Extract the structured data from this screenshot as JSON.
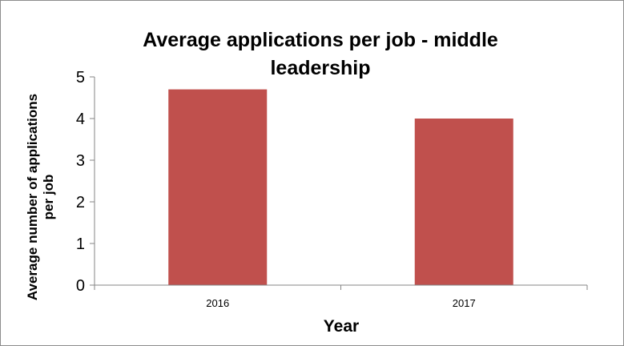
{
  "chart_data": {
    "type": "bar",
    "title_lines": [
      "Average applications per job - middle",
      "leadership"
    ],
    "categories": [
      "2016",
      "2017"
    ],
    "series": [
      {
        "values": [
          4.7,
          4.0
        ],
        "color": "#c0504d"
      }
    ],
    "xlabel": "Year",
    "ylabel_lines": [
      "Average number of applications",
      "per job"
    ],
    "ylim": [
      0,
      5
    ],
    "yticks": [
      "0",
      "1",
      "2",
      "3",
      "4",
      "5"
    ],
    "grid": false,
    "legend": "none",
    "axis_color": "#868686"
  }
}
